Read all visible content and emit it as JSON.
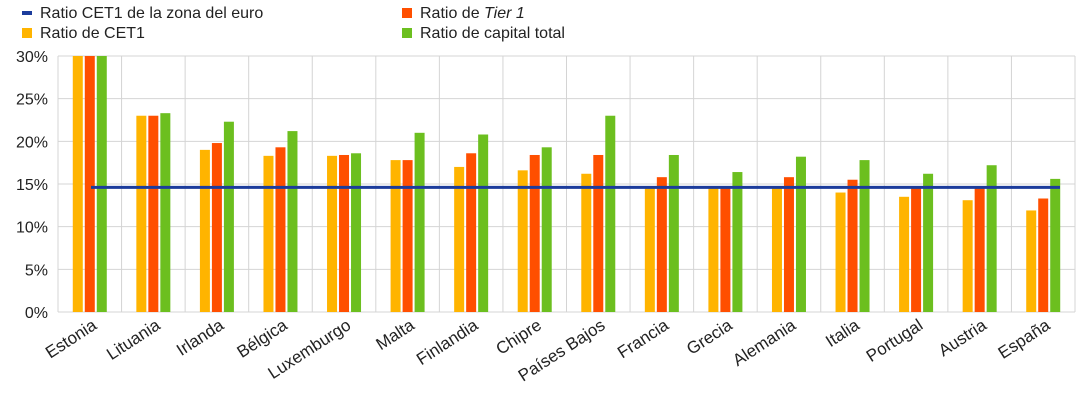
{
  "chart_data": {
    "type": "bar",
    "title": "",
    "xlabel": "",
    "ylabel": "",
    "ylim": [
      0,
      30
    ],
    "yticks": [
      "0%",
      "5%",
      "10%",
      "15%",
      "20%",
      "25%",
      "30%"
    ],
    "ytick_values": [
      0,
      5,
      10,
      15,
      20,
      25,
      30
    ],
    "grid": "vertical and horizontal",
    "legend_position": "top-left",
    "categories": [
      "Estonia",
      "Lituania",
      "Irlanda",
      "Bélgica",
      "Luxemburgo",
      "Malta",
      "Finlandia",
      "Chipre",
      "Países Bajos",
      "Francia",
      "Grecia",
      "Alemania",
      "Italia",
      "Portugal",
      "Austria",
      "España"
    ],
    "series": [
      {
        "name": "Ratio de CET1",
        "kind": "bar",
        "color": "#ffb400",
        "values": [
          30.0,
          23.0,
          19.0,
          18.3,
          18.3,
          17.8,
          17.0,
          16.6,
          16.2,
          14.6,
          14.5,
          14.6,
          14.0,
          13.5,
          13.1,
          11.9
        ]
      },
      {
        "name": "Ratio de Tier 1",
        "label_prefix": "Ratio de ",
        "label_italic": "Tier 1",
        "kind": "bar",
        "color": "#ff4f00",
        "values": [
          30.0,
          23.0,
          19.8,
          19.3,
          18.4,
          17.8,
          18.6,
          18.4,
          18.4,
          15.8,
          14.5,
          15.8,
          15.5,
          14.6,
          14.6,
          13.3
        ]
      },
      {
        "name": "Ratio de capital total",
        "kind": "bar",
        "color": "#6cbf1f",
        "values": [
          30.0,
          23.3,
          22.3,
          21.2,
          18.6,
          21.0,
          20.8,
          19.3,
          23.0,
          18.4,
          16.4,
          18.2,
          17.8,
          16.2,
          17.2,
          15.6
        ]
      },
      {
        "name": "Ratio CET1 de la zona del euro",
        "kind": "line",
        "color": "#1c3c9c",
        "value": 14.6
      }
    ]
  }
}
